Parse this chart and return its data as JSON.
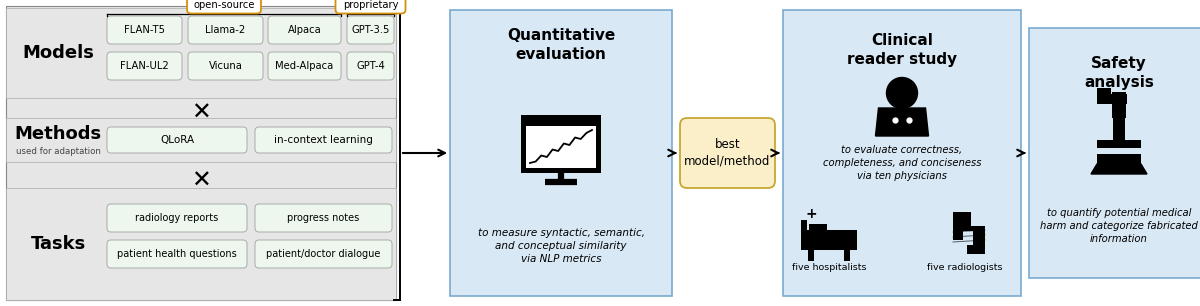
{
  "bg_color": "#ffffff",
  "left_panel_bg": "#e6e6e6",
  "green_box_bg": "#eef7ee",
  "green_box_border": "#aaaaaa",
  "blue_box_bg": "#d8e8f5",
  "blue_box_border": "#7aaad0",
  "orange_label_bg": "#ffffff",
  "orange_label_border": "#d4900a",
  "beige_box_bg": "#faefc8",
  "beige_box_border": "#c8a832",
  "models_row1": [
    "FLAN-T5",
    "Llama-2",
    "Alpaca",
    "GPT-3.5"
  ],
  "models_row2": [
    "FLAN-UL2",
    "Vicuna",
    "Med-Alpaca",
    "GPT-4"
  ],
  "methods": [
    "QLoRA",
    "in-context learning"
  ],
  "tasks_row1": [
    "radiology reports",
    "progress notes"
  ],
  "tasks_row2": [
    "patient health questions",
    "patient/doctor dialogue"
  ],
  "open_source_label": "open-source",
  "proprietary_label": "proprietary",
  "models_label": "Models",
  "methods_label": "Methods",
  "methods_sublabel": "used for adaptation",
  "tasks_label": "Tasks",
  "quant_title": "Quantitative\nevaluation",
  "quant_desc": "to measure syntactic, semantic,\nand conceptual similarity\nvia NLP metrics",
  "best_label": "best\nmodel/method",
  "clinical_title": "Clinical\nreader study",
  "clinical_desc": "to evaluate correctness,\ncompleteness, and conciseness\nvia ten physicians",
  "hospitalists_label": "five hospitalists",
  "radiologists_label": "five radiologists",
  "safety_title": "Safety\nanalysis",
  "safety_desc": "to quantify potential medical\nharm and categorize fabricated\ninformation"
}
